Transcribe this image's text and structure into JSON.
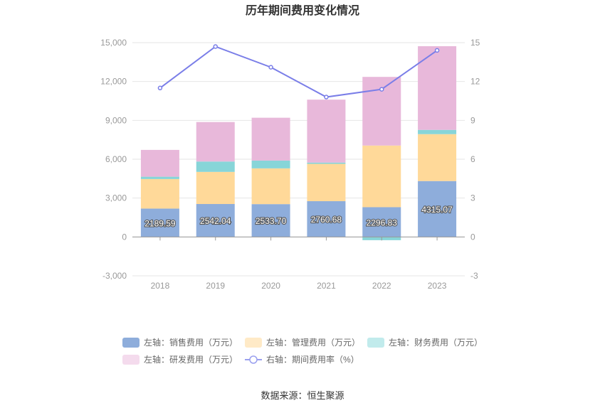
{
  "chart_data": {
    "type": "bar",
    "title": "历年期间费用变化情况",
    "categories": [
      "2018",
      "2019",
      "2020",
      "2021",
      "2022",
      "2023"
    ],
    "series": [
      {
        "name": "左轴：销售费用（万元）",
        "axis": "left",
        "kind": "stacked-bar",
        "color": "#8eaddb",
        "values": [
          2189.59,
          2542.04,
          2533.7,
          2760.68,
          2296.83,
          4315.07
        ]
      },
      {
        "name": "左轴：管理费用（万元）",
        "axis": "left",
        "kind": "stacked-bar",
        "color": "#ffd999",
        "values": [
          2280,
          2480,
          2760,
          2880,
          4760,
          3620
        ]
      },
      {
        "name": "左轴：财务费用（万元）",
        "axis": "left",
        "kind": "stacked-bar",
        "color": "#87d5d8",
        "values": [
          180,
          800,
          600,
          100,
          -250,
          330
        ]
      },
      {
        "name": "左轴：研发费用（万元）",
        "axis": "left",
        "kind": "stacked-bar",
        "color": "#e8b8da",
        "values": [
          2070,
          3050,
          3310,
          4860,
          5300,
          6460
        ]
      },
      {
        "name": "右轴：期间费用率（%）",
        "axis": "right",
        "kind": "line",
        "color": "#7a7ee8",
        "values": [
          11.5,
          14.7,
          13.1,
          10.8,
          11.4,
          14.4
        ]
      }
    ],
    "data_labels": [
      "2189.59",
      "2542.04",
      "2533.70",
      "2760.68",
      "2296.83",
      "4315.07"
    ],
    "y_left": {
      "min": -3000,
      "max": 15000,
      "ticks": [
        -3000,
        0,
        3000,
        6000,
        9000,
        12000,
        15000
      ],
      "tick_labels": [
        "-3,000",
        "0",
        "3,000",
        "6,000",
        "9,000",
        "12,000",
        "15,000"
      ]
    },
    "y_right": {
      "min": -3,
      "max": 15,
      "ticks": [
        -3,
        0,
        3,
        6,
        9,
        12,
        15
      ],
      "tick_labels": [
        "-3",
        "0",
        "3",
        "6",
        "9",
        "12",
        "15"
      ]
    },
    "grid": true,
    "legend_position": "bottom"
  },
  "source": "数据来源：恒生聚源",
  "legend_marker_colors": {
    "sales": "#8eaddb",
    "admin": "#ffeac7",
    "finance": "#c1ebec",
    "rd": "#f4dbed",
    "rate": "#9aa0ef"
  }
}
